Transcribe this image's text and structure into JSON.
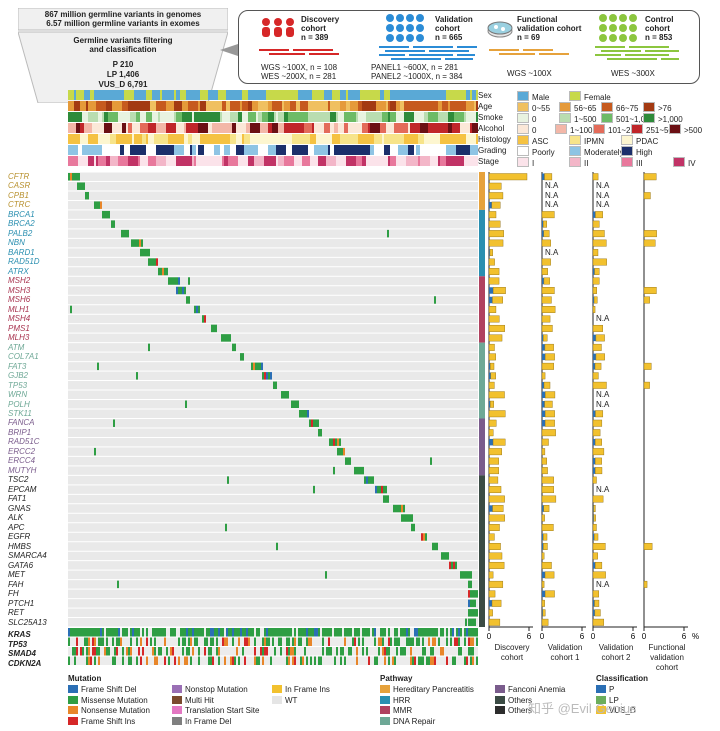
{
  "funnel": {
    "line1": "867 million germline variants in genomes",
    "line2": "6.57 million germline variants in exomes",
    "line3": "Germline variants filtering",
    "line4": "and classification",
    "p": "P 210",
    "lp": "LP 1,406",
    "vus": "VUS_D 6,791"
  },
  "cohorts": {
    "discovery": {
      "title": "Discovery",
      "sub": "cohort",
      "n": "n = 389",
      "d1": "WGS ~100X, n = 108",
      "d2": "WES ~200X, n = 281"
    },
    "validation": {
      "title": "Validation",
      "sub": "cohort",
      "n": "n = 665",
      "d1": "PANEL1 ~600X, n = 281",
      "d2": "PANEL2 ~1000X, n = 384"
    },
    "functional": {
      "title": "Functional",
      "sub": "validation cohort",
      "n": "n = 69",
      "d1": "WGS ~100X"
    },
    "control": {
      "title": "Control",
      "sub": "cohort",
      "n": "n = 853",
      "d1": "WES ~300X"
    }
  },
  "tracks": {
    "labels": [
      "Sex",
      "Age",
      "Smoke",
      "Alcohol",
      "Histology",
      "Grading",
      "Stage"
    ],
    "legend": [
      [
        {
          "label": "Male",
          "color": "#5aa9d6"
        },
        {
          "label": "Female",
          "color": "#c7d94a"
        }
      ],
      [
        {
          "label": "0~55",
          "color": "#f0c060"
        },
        {
          "label": "56~65",
          "color": "#e59a3a"
        },
        {
          "label": "66~75",
          "color": "#c65a1e"
        },
        {
          "label": ">76",
          "color": "#a33a12"
        }
      ],
      [
        {
          "label": "0",
          "color": "#e8f3e0"
        },
        {
          "label": "1~500",
          "color": "#b9ddb0"
        },
        {
          "label": "501~1,000",
          "color": "#6dbb66"
        },
        {
          "label": ">1,000",
          "color": "#2e8b3a"
        }
      ],
      [
        {
          "label": "0",
          "color": "#fbe8d8"
        },
        {
          "label": "1~100",
          "color": "#f3b7a8"
        },
        {
          "label": "101~250",
          "color": "#e36b5a"
        },
        {
          "label": "251~500",
          "color": "#c0262a"
        },
        {
          "label": ">500",
          "color": "#6b1014"
        }
      ],
      [
        {
          "label": "ASC",
          "color": "#f5c242"
        },
        {
          "label": "IPMN",
          "color": "#f7e48a"
        },
        {
          "label": "PDAC",
          "color": "#fdf6d0"
        }
      ],
      [
        {
          "label": "Poorly",
          "color": "#ffffff"
        },
        {
          "label": "Moderately",
          "color": "#8ec4e4"
        },
        {
          "label": "High",
          "color": "#1b2f6b"
        }
      ],
      [
        {
          "label": "I",
          "color": "#fbe3ea"
        },
        {
          "label": "II",
          "color": "#f3b6c8"
        },
        {
          "label": "III",
          "color": "#e8789c"
        },
        {
          "label": "IV",
          "color": "#c13366"
        }
      ]
    ]
  },
  "genes": [
    "CFTR",
    "CASR",
    "CPB1",
    "CTRC",
    "BRCA1",
    "BRCA2",
    "PALB2",
    "NBN",
    "BARD1",
    "RAD51D",
    "ATRX",
    "MSH2",
    "MSH3",
    "MSH6",
    "MLH1",
    "MSH4",
    "PMS1",
    "MLH3",
    "ATM",
    "COL7A1",
    "FAT3",
    "GJB2",
    "TP53",
    "WRN",
    "POLH",
    "STK11",
    "FANCA",
    "BRIP1",
    "RAD51C",
    "ERCC2",
    "ERCC4",
    "MUTYH",
    "TSC2",
    "EPCAM",
    "FAT1",
    "GNAS",
    "ALK",
    "APC",
    "EGFR",
    "HMBS",
    "SMARCA4",
    "GATA6",
    "MET",
    "FAH",
    "FH",
    "PTCH1",
    "RET",
    "SLC25A13"
  ],
  "gene_colors": [
    "#b8912e",
    "#b8912e",
    "#b8912e",
    "#b8912e",
    "#2a8fb0",
    "#2a8fb0",
    "#2a8fb0",
    "#2a8fb0",
    "#2a8fb0",
    "#2a8fb0",
    "#2a8fb0",
    "#a8334f",
    "#a8334f",
    "#a8334f",
    "#a8334f",
    "#a8334f",
    "#a8334f",
    "#a8334f",
    "#6ea896",
    "#6ea896",
    "#6ea896",
    "#6ea896",
    "#6ea896",
    "#6ea896",
    "#6ea896",
    "#6ea896",
    "#7a5c8c",
    "#7a5c8c",
    "#7a5c8c",
    "#7a5c8c",
    "#7a5c8c",
    "#7a5c8c",
    "#222",
    "#222",
    "#222",
    "#222",
    "#222",
    "#222",
    "#222",
    "#222",
    "#222",
    "#222",
    "#222",
    "#222",
    "#222",
    "#222",
    "#222",
    "#222"
  ],
  "somatic_genes": [
    "KRAS",
    "TP53",
    "SMAD4",
    "CDKN2A"
  ],
  "bar_panels": [
    {
      "title1": "Discovery",
      "title2": "cohort",
      "ticks": [
        "0",
        "6"
      ]
    },
    {
      "title1": "Validation",
      "title2": "cohort 1",
      "ticks": [
        "0",
        "6"
      ]
    },
    {
      "title1": "Validation",
      "title2": "cohort 2",
      "ticks": [
        "0",
        "6"
      ]
    },
    {
      "title1": "Functional",
      "title2": "validation",
      "title3": "cohort",
      "ticks": [
        "0",
        "6"
      ],
      "unit": "%"
    }
  ],
  "na_label": "N.A",
  "legend_mutation": {
    "title": "Mutation",
    "items": [
      {
        "label": "Frame Shift Del",
        "color": "#2b6fb5"
      },
      {
        "label": "Missense Mutation",
        "color": "#2e9e44"
      },
      {
        "label": "Nonsense Mutation",
        "color": "#e8862a"
      },
      {
        "label": "Frame Shift Ins",
        "color": "#d62728"
      },
      {
        "label": "Nonstop Mutation",
        "color": "#9a6fb5"
      },
      {
        "label": "Multi Hit",
        "color": "#7b4a2e"
      },
      {
        "label": "Translation Start Site",
        "color": "#e377c2"
      },
      {
        "label": "In Frame Del",
        "color": "#7f7f7f"
      },
      {
        "label": "In Frame Ins",
        "color": "#f2c12e"
      },
      {
        "label": "WT",
        "color": "#e5e5e5"
      }
    ]
  },
  "legend_pathway": {
    "title": "Pathway",
    "items": [
      {
        "label": "Hereditary Pancreatitis",
        "color": "#e6a23c"
      },
      {
        "label": "HRR",
        "color": "#2a8fb0"
      },
      {
        "label": "MMR",
        "color": "#b0415f"
      },
      {
        "label": "DNA Repair",
        "color": "#6ea896"
      },
      {
        "label": "Fanconi Anemia",
        "color": "#7a5c8c"
      },
      {
        "label": "Others",
        "color": "#3b4b44"
      },
      {
        "label": "Others",
        "color": "#2d2d2d"
      }
    ]
  },
  "legend_class": {
    "title": "Classification",
    "items": [
      {
        "label": "P",
        "color": "#2b6fb5"
      },
      {
        "label": "LP",
        "color": "#6cae5c"
      },
      {
        "label": "VUS_D",
        "color": "#f2c12e"
      }
    ]
  },
  "watermark": "知乎 @Evil Genius"
}
